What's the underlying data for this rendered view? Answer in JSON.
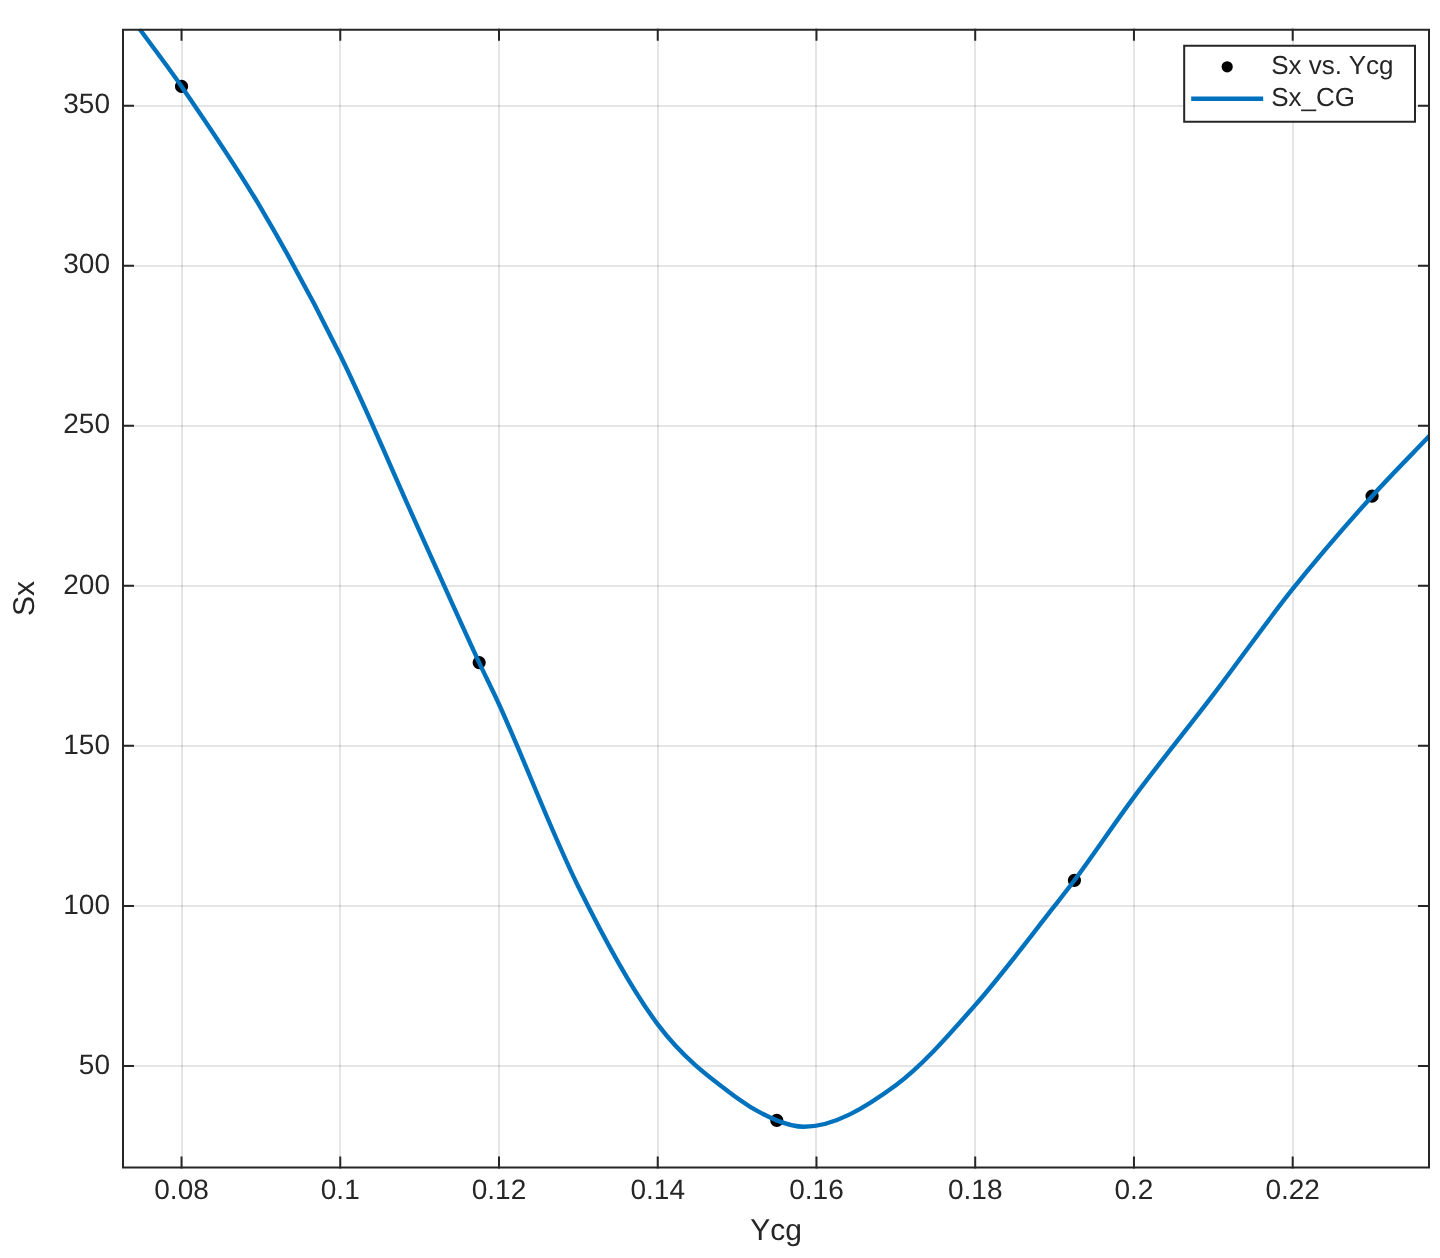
{
  "chart_data": {
    "type": "scatter",
    "xlabel": "Ycg",
    "ylabel": "Sx",
    "xlim": [
      0.0725,
      0.2373
    ],
    "xticks": [
      {
        "value": 0.08,
        "label": "0.08"
      },
      {
        "value": 0.1,
        "label": "0.1"
      },
      {
        "value": 0.12,
        "label": "0.12"
      },
      {
        "value": 0.14,
        "label": "0.14"
      },
      {
        "value": 0.16,
        "label": "0.16"
      },
      {
        "value": 0.18,
        "label": "0.18"
      },
      {
        "value": 0.2,
        "label": "0.2"
      },
      {
        "value": 0.22,
        "label": "0.22"
      }
    ],
    "ylim": [
      18,
      374
    ],
    "yticks": [
      50,
      100,
      150,
      200,
      250,
      300,
      350
    ],
    "grid": true,
    "legend": "top right",
    "series": [
      {
        "name": "Sx vs. Ycg",
        "marker": "circle",
        "color": "#000000",
        "x": [
          0.08,
          0.1175,
          0.155,
          0.1925,
          0.23
        ],
        "values": [
          356,
          176,
          33,
          108,
          228
        ]
      },
      {
        "name": "Sx_CG",
        "type": "line",
        "marker": "none",
        "line_style": "solid",
        "color": "#0072bd",
        "x": [
          0.0747,
          0.08,
          0.09,
          0.1,
          0.11,
          0.1175,
          0.12,
          0.13,
          0.14,
          0.15,
          0.155,
          0.1584,
          0.17,
          0.18,
          0.19,
          0.1925,
          0.2,
          0.21,
          0.22,
          0.23,
          0.2373
        ],
        "values": [
          374,
          356,
          318,
          272,
          217,
          176,
          163,
          106,
          63,
          40,
          33,
          31,
          44,
          69,
          100,
          108,
          134,
          166,
          199,
          228,
          247
        ]
      }
    ]
  }
}
